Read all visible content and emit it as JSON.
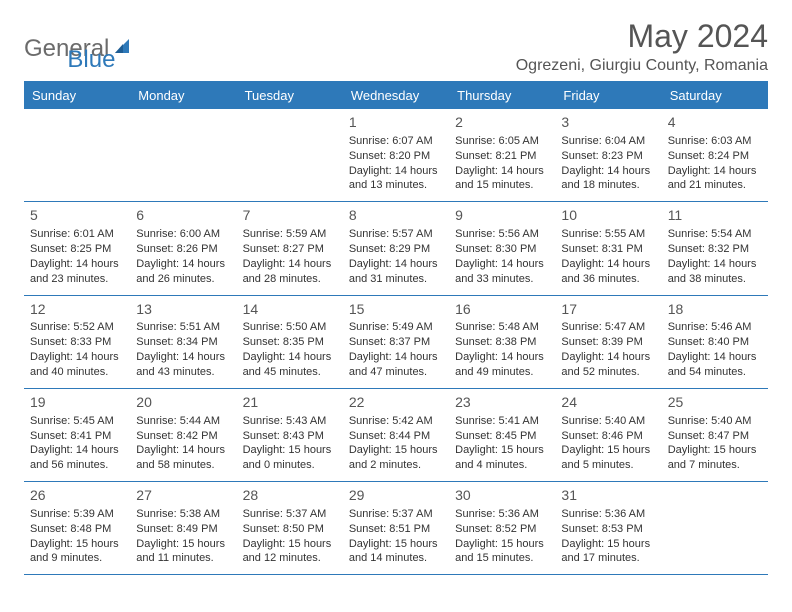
{
  "logo": {
    "general": "General",
    "blue": "Blue"
  },
  "title": "May 2024",
  "location": "Ogrezeni, Giurgiu County, Romania",
  "colors": {
    "brand": "#2e79b9",
    "header_text": "#ffffff",
    "body_text": "#333333",
    "muted": "#555555",
    "logo_gray": "#6b6b6b",
    "background": "#ffffff"
  },
  "dow": [
    "Sunday",
    "Monday",
    "Tuesday",
    "Wednesday",
    "Thursday",
    "Friday",
    "Saturday"
  ],
  "weeks": [
    [
      {
        "n": "",
        "sr": "",
        "ss": "",
        "dl": ""
      },
      {
        "n": "",
        "sr": "",
        "ss": "",
        "dl": ""
      },
      {
        "n": "",
        "sr": "",
        "ss": "",
        "dl": ""
      },
      {
        "n": "1",
        "sr": "Sunrise: 6:07 AM",
        "ss": "Sunset: 8:20 PM",
        "dl": "Daylight: 14 hours and 13 minutes."
      },
      {
        "n": "2",
        "sr": "Sunrise: 6:05 AM",
        "ss": "Sunset: 8:21 PM",
        "dl": "Daylight: 14 hours and 15 minutes."
      },
      {
        "n": "3",
        "sr": "Sunrise: 6:04 AM",
        "ss": "Sunset: 8:23 PM",
        "dl": "Daylight: 14 hours and 18 minutes."
      },
      {
        "n": "4",
        "sr": "Sunrise: 6:03 AM",
        "ss": "Sunset: 8:24 PM",
        "dl": "Daylight: 14 hours and 21 minutes."
      }
    ],
    [
      {
        "n": "5",
        "sr": "Sunrise: 6:01 AM",
        "ss": "Sunset: 8:25 PM",
        "dl": "Daylight: 14 hours and 23 minutes."
      },
      {
        "n": "6",
        "sr": "Sunrise: 6:00 AM",
        "ss": "Sunset: 8:26 PM",
        "dl": "Daylight: 14 hours and 26 minutes."
      },
      {
        "n": "7",
        "sr": "Sunrise: 5:59 AM",
        "ss": "Sunset: 8:27 PM",
        "dl": "Daylight: 14 hours and 28 minutes."
      },
      {
        "n": "8",
        "sr": "Sunrise: 5:57 AM",
        "ss": "Sunset: 8:29 PM",
        "dl": "Daylight: 14 hours and 31 minutes."
      },
      {
        "n": "9",
        "sr": "Sunrise: 5:56 AM",
        "ss": "Sunset: 8:30 PM",
        "dl": "Daylight: 14 hours and 33 minutes."
      },
      {
        "n": "10",
        "sr": "Sunrise: 5:55 AM",
        "ss": "Sunset: 8:31 PM",
        "dl": "Daylight: 14 hours and 36 minutes."
      },
      {
        "n": "11",
        "sr": "Sunrise: 5:54 AM",
        "ss": "Sunset: 8:32 PM",
        "dl": "Daylight: 14 hours and 38 minutes."
      }
    ],
    [
      {
        "n": "12",
        "sr": "Sunrise: 5:52 AM",
        "ss": "Sunset: 8:33 PM",
        "dl": "Daylight: 14 hours and 40 minutes."
      },
      {
        "n": "13",
        "sr": "Sunrise: 5:51 AM",
        "ss": "Sunset: 8:34 PM",
        "dl": "Daylight: 14 hours and 43 minutes."
      },
      {
        "n": "14",
        "sr": "Sunrise: 5:50 AM",
        "ss": "Sunset: 8:35 PM",
        "dl": "Daylight: 14 hours and 45 minutes."
      },
      {
        "n": "15",
        "sr": "Sunrise: 5:49 AM",
        "ss": "Sunset: 8:37 PM",
        "dl": "Daylight: 14 hours and 47 minutes."
      },
      {
        "n": "16",
        "sr": "Sunrise: 5:48 AM",
        "ss": "Sunset: 8:38 PM",
        "dl": "Daylight: 14 hours and 49 minutes."
      },
      {
        "n": "17",
        "sr": "Sunrise: 5:47 AM",
        "ss": "Sunset: 8:39 PM",
        "dl": "Daylight: 14 hours and 52 minutes."
      },
      {
        "n": "18",
        "sr": "Sunrise: 5:46 AM",
        "ss": "Sunset: 8:40 PM",
        "dl": "Daylight: 14 hours and 54 minutes."
      }
    ],
    [
      {
        "n": "19",
        "sr": "Sunrise: 5:45 AM",
        "ss": "Sunset: 8:41 PM",
        "dl": "Daylight: 14 hours and 56 minutes."
      },
      {
        "n": "20",
        "sr": "Sunrise: 5:44 AM",
        "ss": "Sunset: 8:42 PM",
        "dl": "Daylight: 14 hours and 58 minutes."
      },
      {
        "n": "21",
        "sr": "Sunrise: 5:43 AM",
        "ss": "Sunset: 8:43 PM",
        "dl": "Daylight: 15 hours and 0 minutes."
      },
      {
        "n": "22",
        "sr": "Sunrise: 5:42 AM",
        "ss": "Sunset: 8:44 PM",
        "dl": "Daylight: 15 hours and 2 minutes."
      },
      {
        "n": "23",
        "sr": "Sunrise: 5:41 AM",
        "ss": "Sunset: 8:45 PM",
        "dl": "Daylight: 15 hours and 4 minutes."
      },
      {
        "n": "24",
        "sr": "Sunrise: 5:40 AM",
        "ss": "Sunset: 8:46 PM",
        "dl": "Daylight: 15 hours and 5 minutes."
      },
      {
        "n": "25",
        "sr": "Sunrise: 5:40 AM",
        "ss": "Sunset: 8:47 PM",
        "dl": "Daylight: 15 hours and 7 minutes."
      }
    ],
    [
      {
        "n": "26",
        "sr": "Sunrise: 5:39 AM",
        "ss": "Sunset: 8:48 PM",
        "dl": "Daylight: 15 hours and 9 minutes."
      },
      {
        "n": "27",
        "sr": "Sunrise: 5:38 AM",
        "ss": "Sunset: 8:49 PM",
        "dl": "Daylight: 15 hours and 11 minutes."
      },
      {
        "n": "28",
        "sr": "Sunrise: 5:37 AM",
        "ss": "Sunset: 8:50 PM",
        "dl": "Daylight: 15 hours and 12 minutes."
      },
      {
        "n": "29",
        "sr": "Sunrise: 5:37 AM",
        "ss": "Sunset: 8:51 PM",
        "dl": "Daylight: 15 hours and 14 minutes."
      },
      {
        "n": "30",
        "sr": "Sunrise: 5:36 AM",
        "ss": "Sunset: 8:52 PM",
        "dl": "Daylight: 15 hours and 15 minutes."
      },
      {
        "n": "31",
        "sr": "Sunrise: 5:36 AM",
        "ss": "Sunset: 8:53 PM",
        "dl": "Daylight: 15 hours and 17 minutes."
      },
      {
        "n": "",
        "sr": "",
        "ss": "",
        "dl": ""
      }
    ]
  ]
}
